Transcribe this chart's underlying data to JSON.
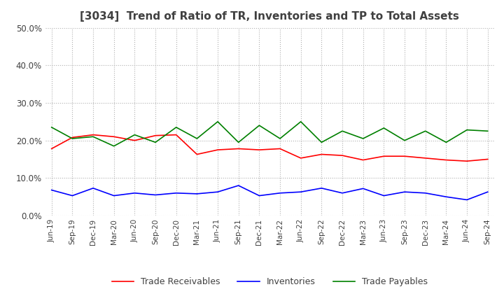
{
  "title": "[3034]  Trend of Ratio of TR, Inventories and TP to Total Assets",
  "title_color": "#404040",
  "background_color": "#ffffff",
  "grid_color": "#b0b0b0",
  "xlabels": [
    "Jun-19",
    "Sep-19",
    "Dec-19",
    "Mar-20",
    "Jun-20",
    "Sep-20",
    "Dec-20",
    "Mar-21",
    "Jun-21",
    "Sep-21",
    "Dec-21",
    "Mar-22",
    "Jun-22",
    "Sep-22",
    "Dec-22",
    "Mar-23",
    "Jun-23",
    "Sep-23",
    "Dec-23",
    "Mar-24",
    "Jun-24",
    "Sep-24"
  ],
  "trade_receivables": [
    0.178,
    0.208,
    0.215,
    0.21,
    0.2,
    0.213,
    0.215,
    0.163,
    0.175,
    0.178,
    0.175,
    0.178,
    0.153,
    0.163,
    0.16,
    0.148,
    0.158,
    0.158,
    0.153,
    0.148,
    0.145,
    0.15
  ],
  "inventories": [
    0.068,
    0.053,
    0.073,
    0.053,
    0.06,
    0.055,
    0.06,
    0.058,
    0.063,
    0.08,
    0.053,
    0.06,
    0.063,
    0.073,
    0.06,
    0.072,
    0.053,
    0.063,
    0.06,
    0.05,
    0.042,
    0.063
  ],
  "trade_payables": [
    0.235,
    0.205,
    0.21,
    0.185,
    0.215,
    0.195,
    0.235,
    0.205,
    0.25,
    0.195,
    0.24,
    0.205,
    0.25,
    0.195,
    0.225,
    0.205,
    0.233,
    0.2,
    0.225,
    0.195,
    0.228,
    0.225
  ],
  "ylim": [
    0.0,
    0.5
  ],
  "yticks": [
    0.0,
    0.1,
    0.2,
    0.3,
    0.4,
    0.5
  ],
  "line_colors": {
    "trade_receivables": "#ff0000",
    "inventories": "#0000ff",
    "trade_payables": "#008000"
  },
  "line_width": 1.2,
  "legend_labels": [
    "Trade Receivables",
    "Inventories",
    "Trade Payables"
  ]
}
